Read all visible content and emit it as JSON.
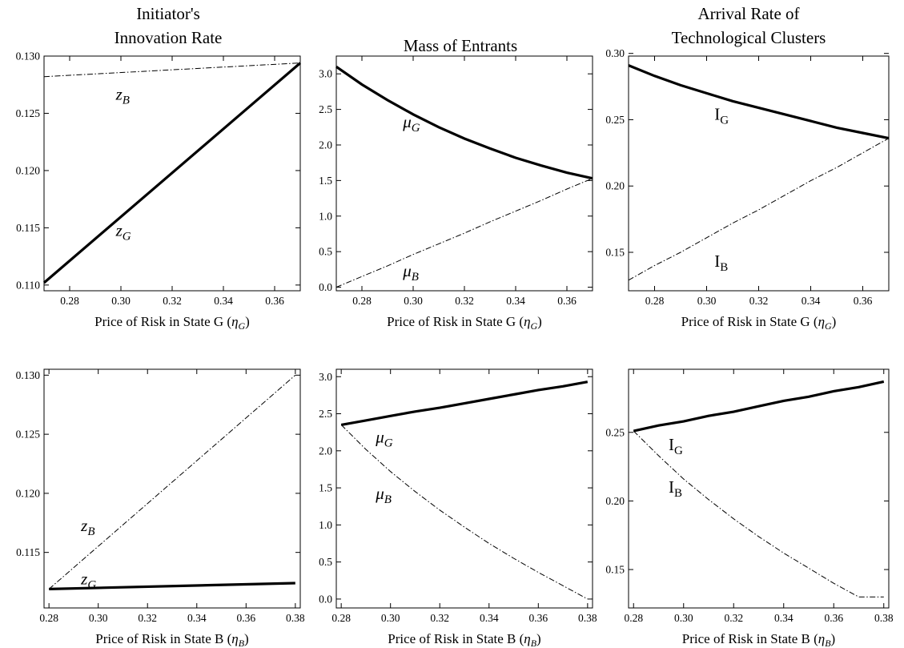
{
  "column_titles": [
    "Initiator's\nInnovation Rate",
    "Mass of Entrants",
    "Arrival Rate of\nTechnological Clusters"
  ],
  "chart_data": [
    {
      "type": "line",
      "xlabel": {
        "main": "Price of Risk in State G (",
        "sym": "η",
        "sub": "G",
        "tail": ")"
      },
      "x": [
        0.27,
        0.37
      ],
      "xlim": [
        0.27,
        0.37
      ],
      "ylim": [
        0.1095,
        0.13
      ],
      "xticks": [
        0.28,
        0.3,
        0.32,
        0.34,
        0.36
      ],
      "xtick_labels": [
        "0.28",
        "0.30",
        "0.32",
        "0.34",
        "0.36"
      ],
      "yticks": [
        0.11,
        0.115,
        0.12,
        0.125,
        0.13
      ],
      "ytick_labels": [
        "0.110",
        "0.115",
        "0.120",
        "0.125",
        "0.130"
      ],
      "series": [
        {
          "style": "solid",
          "values": [
            0.1102,
            0.1294
          ],
          "label": {
            "main": "z",
            "sub": "G",
            "upright": false,
            "at": [
              0.298,
              0.1143
            ]
          }
        },
        {
          "style": "dashdot",
          "values": [
            0.1282,
            0.1294
          ],
          "label": {
            "main": "z",
            "sub": "B",
            "upright": false,
            "at": [
              0.298,
              0.1262
            ]
          }
        }
      ]
    },
    {
      "type": "line",
      "xlabel": {
        "main": "Price of Risk in State G (",
        "sym": "η",
        "sub": "G",
        "tail": ")"
      },
      "x": [
        0.27,
        0.28,
        0.29,
        0.3,
        0.31,
        0.32,
        0.33,
        0.34,
        0.35,
        0.36,
        0.37
      ],
      "xlim": [
        0.27,
        0.37
      ],
      "ylim": [
        -0.05,
        3.25
      ],
      "xticks": [
        0.28,
        0.3,
        0.32,
        0.34,
        0.36
      ],
      "xtick_labels": [
        "0.28",
        "0.30",
        "0.32",
        "0.34",
        "0.36"
      ],
      "yticks": [
        0.0,
        0.5,
        1.0,
        1.5,
        2.0,
        2.5,
        3.0
      ],
      "ytick_labels": [
        "0.0",
        "0.5",
        "1.0",
        "1.5",
        "2.0",
        "2.5",
        "3.0"
      ],
      "series": [
        {
          "style": "solid",
          "values": [
            3.1,
            2.85,
            2.63,
            2.43,
            2.25,
            2.09,
            1.95,
            1.82,
            1.71,
            1.61,
            1.53
          ],
          "label": {
            "main": "μ",
            "sub": "G",
            "upright": false,
            "at": [
              0.296,
              2.25
            ]
          }
        },
        {
          "style": "dashdot",
          "values": [
            0.0,
            0.15,
            0.3,
            0.46,
            0.61,
            0.76,
            0.92,
            1.07,
            1.22,
            1.38,
            1.53
          ],
          "label": {
            "main": "μ",
            "sub": "B",
            "upright": false,
            "at": [
              0.296,
              0.15
            ]
          }
        }
      ]
    },
    {
      "type": "line",
      "xlabel": {
        "main": "Price of Risk in State G (",
        "sym": "η",
        "sub": "G",
        "tail": ")"
      },
      "x": [
        0.27,
        0.28,
        0.29,
        0.3,
        0.31,
        0.32,
        0.33,
        0.34,
        0.35,
        0.36,
        0.37
      ],
      "xlim": [
        0.27,
        0.37
      ],
      "ylim": [
        0.121,
        0.298
      ],
      "xticks": [
        0.28,
        0.3,
        0.32,
        0.34,
        0.36
      ],
      "xtick_labels": [
        "0.28",
        "0.30",
        "0.32",
        "0.34",
        "0.36"
      ],
      "yticks": [
        0.15,
        0.2,
        0.25,
        0.3
      ],
      "ytick_labels": [
        "0.15",
        "0.20",
        "0.25",
        "0.30"
      ],
      "series": [
        {
          "style": "solid",
          "values": [
            0.291,
            0.283,
            0.276,
            0.27,
            0.264,
            0.259,
            0.254,
            0.249,
            0.244,
            0.24,
            0.236
          ],
          "label": {
            "main": "I",
            "sub": "G",
            "upright": true,
            "at": [
              0.303,
              0.25
            ]
          }
        },
        {
          "style": "dashdot",
          "values": [
            0.129,
            0.14,
            0.15,
            0.161,
            0.172,
            0.182,
            0.193,
            0.204,
            0.214,
            0.225,
            0.236
          ],
          "label": {
            "main": "I",
            "sub": "B",
            "upright": true,
            "at": [
              0.303,
              0.139
            ]
          }
        }
      ]
    },
    {
      "type": "line",
      "xlabel": {
        "main": "Price of Risk in State B (",
        "sym": "η",
        "sub": "B",
        "tail": ")"
      },
      "x": [
        0.28,
        0.38
      ],
      "xlim": [
        0.278,
        0.382
      ],
      "ylim": [
        0.1103,
        0.1305
      ],
      "xticks": [
        0.28,
        0.3,
        0.32,
        0.34,
        0.36,
        0.38
      ],
      "xtick_labels": [
        "0.28",
        "0.30",
        "0.32",
        "0.34",
        "0.36",
        "0.38"
      ],
      "yticks": [
        0.115,
        0.12,
        0.125,
        0.13
      ],
      "ytick_labels": [
        "0.115",
        "0.120",
        "0.125",
        "0.130"
      ],
      "series": [
        {
          "style": "solid",
          "values": [
            0.1119,
            0.1124
          ],
          "label": {
            "main": "z",
            "sub": "G",
            "upright": false,
            "at": [
              0.293,
              0.1123
            ]
          }
        },
        {
          "style": "dashdot",
          "values": [
            0.1119,
            0.13
          ],
          "label": {
            "main": "z",
            "sub": "B",
            "upright": false,
            "at": [
              0.293,
              0.1168
            ]
          }
        }
      ]
    },
    {
      "type": "line",
      "xlabel": {
        "main": "Price of Risk in State B (",
        "sym": "η",
        "sub": "B",
        "tail": ")"
      },
      "x": [
        0.28,
        0.29,
        0.3,
        0.31,
        0.32,
        0.33,
        0.34,
        0.35,
        0.36,
        0.37,
        0.38
      ],
      "xlim": [
        0.278,
        0.382
      ],
      "ylim": [
        -0.12,
        3.1
      ],
      "xticks": [
        0.28,
        0.3,
        0.32,
        0.34,
        0.36,
        0.38
      ],
      "xtick_labels": [
        "0.28",
        "0.30",
        "0.32",
        "0.34",
        "0.36",
        "0.38"
      ],
      "yticks": [
        0.0,
        0.5,
        1.0,
        1.5,
        2.0,
        2.5,
        3.0
      ],
      "ytick_labels": [
        "0.0",
        "0.5",
        "1.0",
        "1.5",
        "2.0",
        "2.5",
        "3.0"
      ],
      "series": [
        {
          "style": "solid",
          "values": [
            2.35,
            2.41,
            2.47,
            2.53,
            2.58,
            2.64,
            2.7,
            2.76,
            2.82,
            2.87,
            2.93
          ],
          "label": {
            "main": "μ",
            "sub": "G",
            "upright": false,
            "at": [
              0.294,
              2.11
            ]
          }
        },
        {
          "style": "dashdot",
          "values": [
            2.35,
            2.02,
            1.72,
            1.45,
            1.2,
            0.97,
            0.75,
            0.55,
            0.36,
            0.18,
            0.0
          ],
          "label": {
            "main": "μ",
            "sub": "B",
            "upright": false,
            "at": [
              0.294,
              1.35
            ]
          }
        }
      ]
    },
    {
      "type": "line",
      "xlabel": {
        "main": "Price of Risk in State B (",
        "sym": "η",
        "sub": "B",
        "tail": ")"
      },
      "x": [
        0.28,
        0.29,
        0.3,
        0.31,
        0.32,
        0.33,
        0.34,
        0.35,
        0.36,
        0.37,
        0.38
      ],
      "xlim": [
        0.278,
        0.382
      ],
      "ylim": [
        0.122,
        0.296
      ],
      "xticks": [
        0.28,
        0.3,
        0.32,
        0.34,
        0.36,
        0.38
      ],
      "xtick_labels": [
        "0.28",
        "0.30",
        "0.32",
        "0.34",
        "0.36",
        "0.38"
      ],
      "yticks": [
        0.15,
        0.2,
        0.25
      ],
      "ytick_labels": [
        "0.15",
        "0.20",
        "0.25"
      ],
      "series": [
        {
          "style": "solid",
          "values": [
            0.251,
            0.255,
            0.258,
            0.262,
            0.265,
            0.269,
            0.273,
            0.276,
            0.28,
            0.283,
            0.287
          ],
          "label": {
            "main": "I",
            "sub": "G",
            "upright": true,
            "at": [
              0.294,
              0.237
            ]
          }
        },
        {
          "style": "dashdot",
          "values": [
            0.251,
            0.233,
            0.216,
            0.201,
            0.187,
            0.174,
            0.162,
            0.151,
            0.14,
            0.13,
            0.13
          ],
          "label": {
            "main": "I",
            "sub": "B",
            "upright": true,
            "at": [
              0.294,
              0.206
            ]
          }
        }
      ]
    }
  ]
}
